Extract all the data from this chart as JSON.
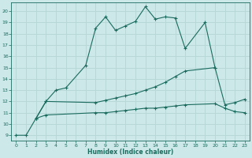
{
  "title": "",
  "xlabel": "Humidex (Indice chaleur)",
  "bg_color": "#cce8e8",
  "grid_color": "#b8d8d8",
  "line_color": "#1a6b5e",
  "xlim": [
    -0.5,
    23.5
  ],
  "ylim": [
    8.5,
    20.8
  ],
  "yticks": [
    9,
    10,
    11,
    12,
    13,
    14,
    15,
    16,
    17,
    18,
    19,
    20
  ],
  "xticks": [
    0,
    1,
    2,
    3,
    4,
    5,
    6,
    7,
    8,
    9,
    10,
    11,
    12,
    13,
    14,
    15,
    16,
    17,
    18,
    19,
    20,
    21,
    22,
    23
  ],
  "line1_x": [
    0,
    1,
    2,
    3,
    4,
    5,
    7,
    8,
    9,
    10,
    11,
    12,
    13,
    14,
    15,
    16,
    17,
    19,
    20
  ],
  "line1_y": [
    9.0,
    9.0,
    10.5,
    12.0,
    13.0,
    13.2,
    15.2,
    18.5,
    19.5,
    18.3,
    18.7,
    19.1,
    20.4,
    19.3,
    19.5,
    19.4,
    16.7,
    19.0,
    15.0
  ],
  "line2_x": [
    2,
    3,
    8,
    9,
    10,
    11,
    12,
    13,
    14,
    15,
    16,
    17,
    20,
    21,
    22,
    23
  ],
  "line2_y": [
    10.5,
    12.0,
    11.9,
    12.1,
    12.3,
    12.5,
    12.7,
    13.0,
    13.3,
    13.7,
    14.2,
    14.7,
    15.0,
    11.7,
    11.9,
    12.2
  ],
  "line3_x": [
    2,
    3,
    8,
    9,
    10,
    11,
    12,
    13,
    14,
    15,
    16,
    17,
    20,
    21,
    22,
    23
  ],
  "line3_y": [
    10.5,
    10.8,
    11.0,
    11.0,
    11.1,
    11.2,
    11.3,
    11.4,
    11.4,
    11.5,
    11.6,
    11.7,
    11.8,
    11.4,
    11.1,
    11.0
  ]
}
